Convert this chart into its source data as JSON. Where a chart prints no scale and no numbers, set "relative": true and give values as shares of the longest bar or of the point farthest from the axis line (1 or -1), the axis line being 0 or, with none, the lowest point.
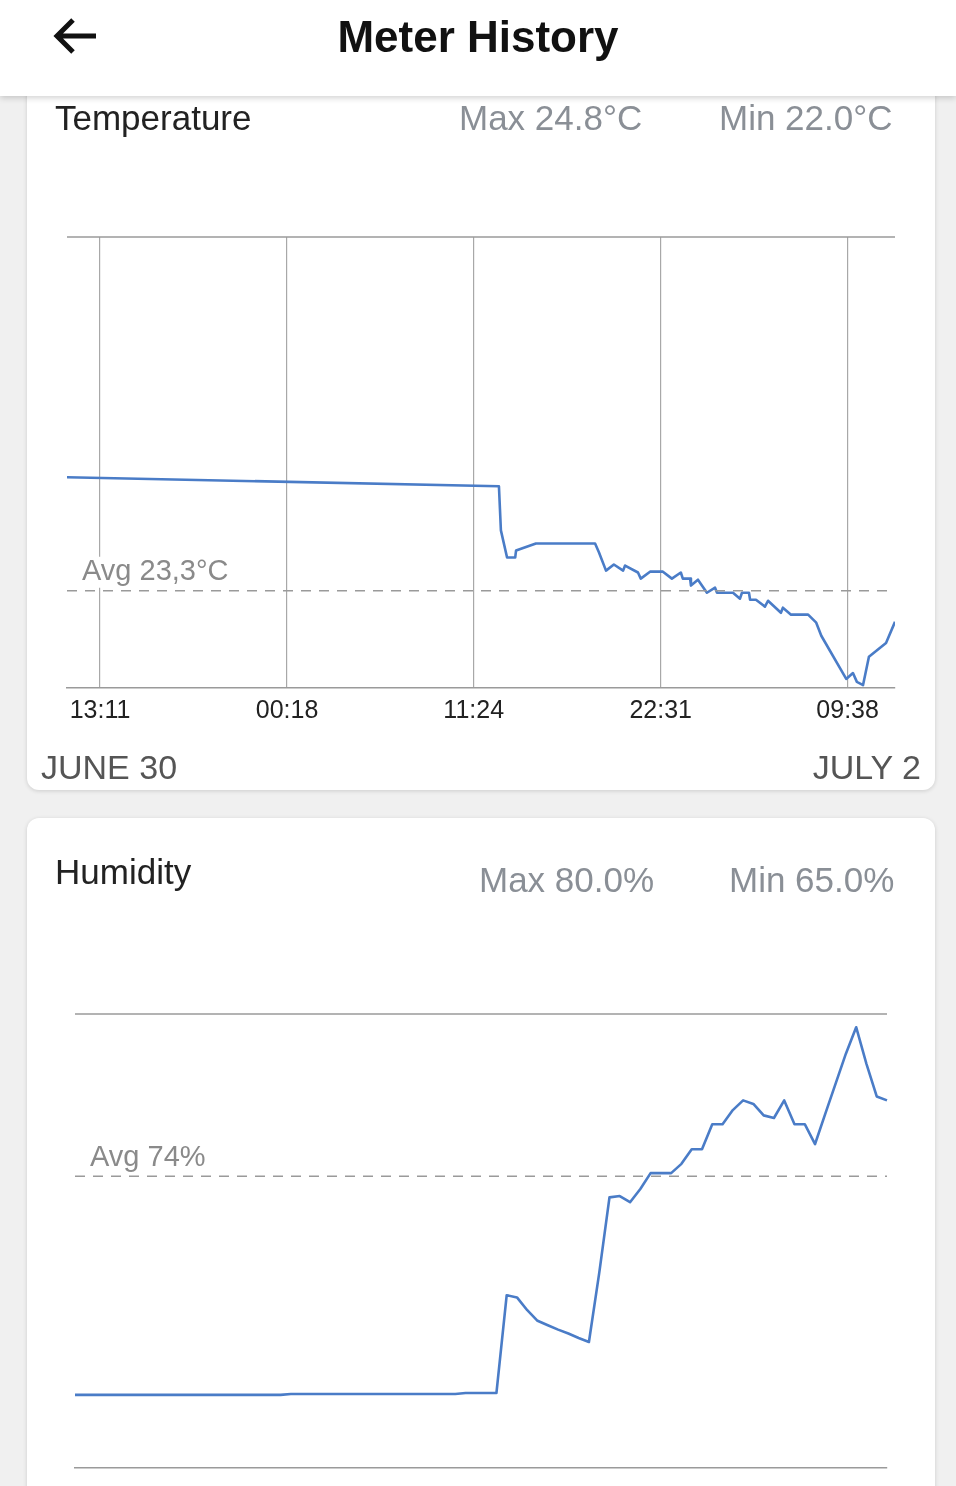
{
  "chart_data": [
    {
      "type": "line",
      "title": "Temperature",
      "annotations": [
        "Meter History",
        "Max 24.8°C",
        "Min 22.0°C",
        "JUNE 30",
        "JULY 2"
      ],
      "relative": true,
      "grid": "x",
      "marker": "none",
      "line_style": "solid",
      "xlim": [
        "--06-30T11:13",
        "--07-02T12:27"
      ],
      "xticks": [
        {
          "value": "--06-30T13:11",
          "label": "13:11"
        },
        {
          "value": "--07-01T00:18",
          "label": "00:18"
        },
        {
          "value": "--07-01T11:24",
          "label": "11:24"
        },
        {
          "value": "--07-01T22:31",
          "label": "22:31"
        },
        {
          "value": "--07-02T09:38",
          "label": "09:38"
        }
      ],
      "ref_lines": [
        {
          "axis": "y",
          "value": 0.462,
          "label": "Avg 23,3°C",
          "line_style": "dashed",
          "color": "#9a9a9a"
        }
      ],
      "series": [
        {
          "color": "#4a7cc7",
          "x": [
            "--06-30T11:13",
            "--07-01T12:54",
            "--07-01T13:01",
            "--07-01T13:23",
            "--07-01T13:52",
            "--07-01T13:55",
            "--07-01T15:06",
            "--07-01T18:37",
            "--07-01T18:51",
            "--07-01T19:16",
            "--07-01T19:44",
            "--07-01T20:17",
            "--07-01T20:24",
            "--07-01T21:10",
            "--07-01T21:20",
            "--07-01T21:53",
            "--07-01T22:39",
            "--07-01T23:11",
            "--07-01T23:43",
            "--07-01T23:50",
            "--07-02T00:16",
            "--07-02T00:19",
            "--07-02T00:44",
            "--07-02T01:16",
            "--07-02T01:45",
            "--07-02T01:52",
            "--07-02T02:49",
            "--07-02T03:14",
            "--07-02T03:21",
            "--07-02T03:46",
            "--07-02T03:50",
            "--07-02T04:11",
            "--07-02T04:43",
            "--07-02T04:54",
            "--07-02T05:40",
            "--07-02T05:47",
            "--07-02T06:16",
            "--07-02T07:17",
            "--07-02T07:46",
            "--07-02T08:04",
            "--07-02T09:33",
            "--07-02T09:57",
            "--07-02T10:11",
            "--07-02T10:33",
            "--07-02T10:54",
            "--07-02T11:55",
            "--07-02T12:27"
          ],
          "values": [
            1.0,
            0.957,
            0.748,
            0.619,
            0.619,
            0.652,
            0.686,
            0.686,
            0.643,
            0.557,
            0.586,
            0.557,
            0.581,
            0.548,
            0.519,
            0.552,
            0.552,
            0.519,
            0.548,
            0.519,
            0.519,
            0.486,
            0.514,
            0.452,
            0.476,
            0.452,
            0.452,
            0.424,
            0.452,
            0.452,
            0.419,
            0.419,
            0.386,
            0.414,
            0.357,
            0.381,
            0.348,
            0.348,
            0.31,
            0.248,
            0.043,
            0.071,
            0.029,
            0.014,
            0.148,
            0.214,
            0.314
          ]
        }
      ]
    },
    {
      "type": "line",
      "title": "Humidity",
      "annotations": [
        "Max 80.0%",
        "Min 65.0%"
      ],
      "relative": true,
      "marker": "none",
      "line_style": "solid",
      "tick_labels": false,
      "categories": [
        null,
        null,
        null,
        null,
        null,
        null,
        null,
        null,
        null,
        null,
        null,
        null,
        null,
        null,
        null,
        null,
        null,
        null,
        null,
        null,
        null,
        null,
        null,
        null,
        null,
        null,
        null,
        null,
        null,
        null,
        null,
        null,
        null,
        null,
        null,
        null,
        null,
        null,
        null,
        null,
        null,
        null,
        null,
        null,
        null,
        null,
        null,
        null,
        null,
        null,
        null,
        null,
        null,
        null,
        null,
        null,
        null,
        null,
        null,
        null,
        null,
        null,
        null,
        null,
        null,
        null,
        null,
        null,
        null,
        null,
        null,
        null,
        null,
        null,
        null,
        null,
        null,
        null,
        null,
        null
      ],
      "ref_lines": [
        {
          "axis": "y",
          "value": 0.662,
          "label": "Avg 74%",
          "line_style": "dashed",
          "color": "#9a9a9a"
        }
      ],
      "series": [
        {
          "color": "#4a7cc7",
          "values": [
            0.166,
            0.166,
            0.166,
            0.166,
            0.166,
            0.166,
            0.166,
            0.166,
            0.166,
            0.166,
            0.166,
            0.166,
            0.166,
            0.166,
            0.166,
            0.166,
            0.166,
            0.166,
            0.166,
            0.166,
            0.166,
            0.168,
            0.168,
            0.168,
            0.168,
            0.168,
            0.168,
            0.168,
            0.168,
            0.168,
            0.168,
            0.168,
            0.168,
            0.168,
            0.168,
            0.168,
            0.168,
            0.168,
            0.17,
            0.17,
            0.17,
            0.17,
            0.392,
            0.387,
            0.358,
            0.334,
            0.324,
            0.314,
            0.305,
            0.295,
            0.286,
            0.442,
            0.614,
            0.617,
            0.603,
            0.633,
            0.669,
            0.669,
            0.669,
            0.69,
            0.723,
            0.723,
            0.78,
            0.78,
            0.812,
            0.834,
            0.826,
            0.8,
            0.794,
            0.834,
            0.78,
            0.78,
            0.735,
            0.804,
            0.872,
            0.94,
            1.0,
            0.917,
            0.843,
            0.834
          ]
        }
      ]
    }
  ]
}
